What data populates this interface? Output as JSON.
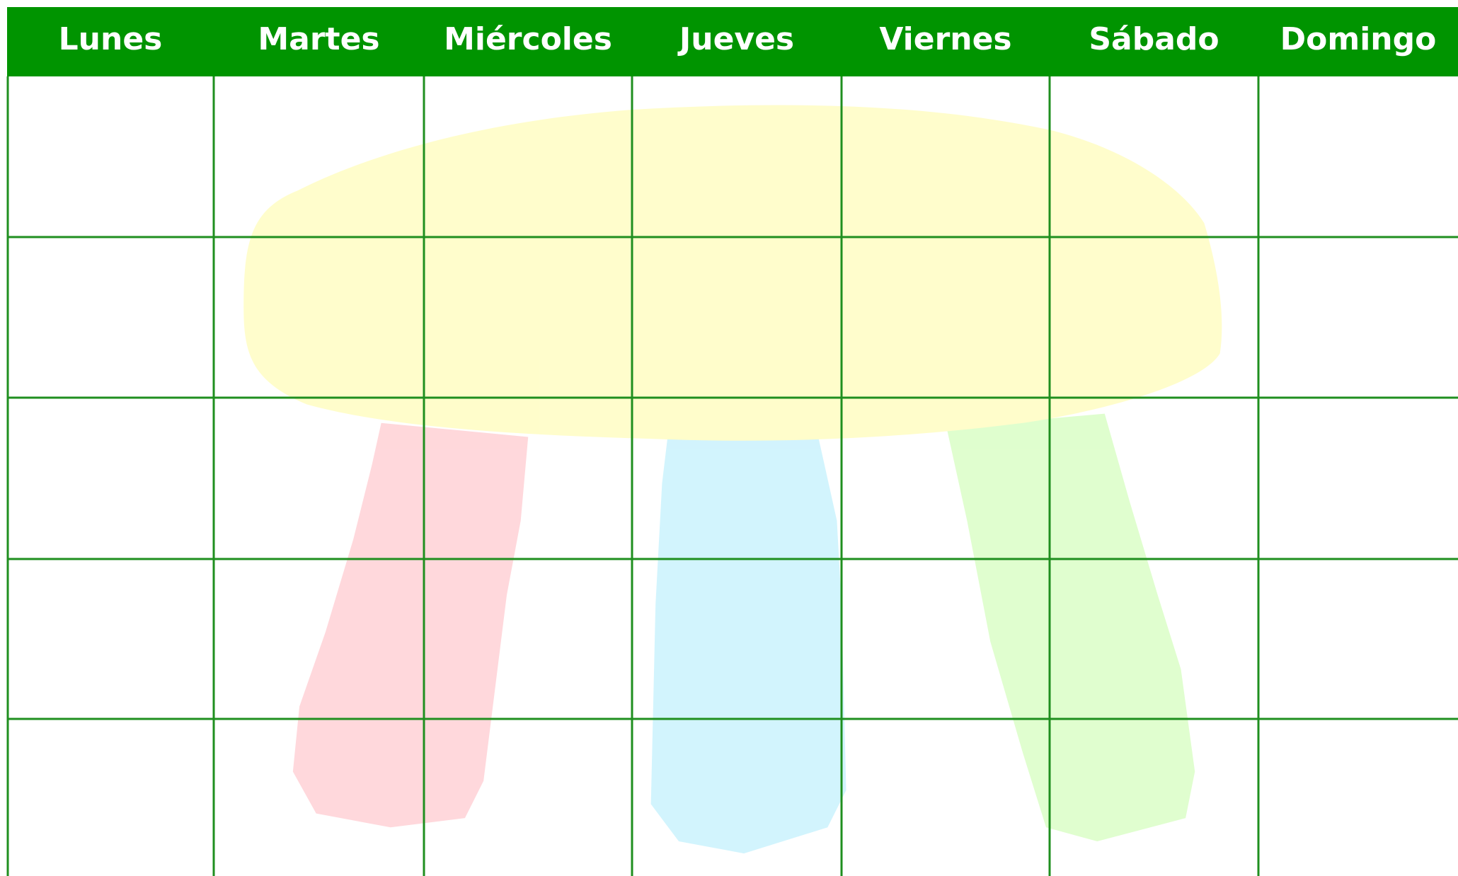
{
  "header": {
    "days": [
      "Lunes",
      "Martes",
      "Miércoles",
      "Jueves",
      "Viernes",
      "Sábado",
      "Domingo"
    ]
  }
}
